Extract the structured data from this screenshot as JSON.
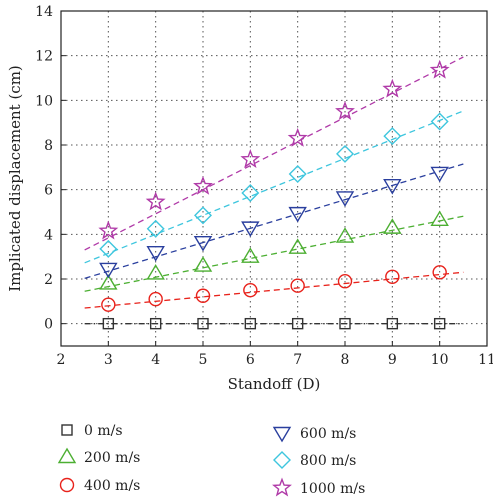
{
  "chart_data": {
    "type": "scatter",
    "xlabel": "Standoff (D)",
    "ylabel": "Implicated displacement (cm)",
    "xlim": [
      2,
      11
    ],
    "ylim": [
      -1,
      14
    ],
    "x_ticks": [
      2,
      3,
      4,
      5,
      6,
      7,
      8,
      9,
      10,
      11
    ],
    "y_ticks": [
      0,
      2,
      4,
      6,
      8,
      10,
      12,
      14
    ],
    "grid": true,
    "legend_position": "bottom",
    "x": [
      3,
      4,
      5,
      6,
      7,
      8,
      9,
      10
    ],
    "series": [
      {
        "name": "0 m/s",
        "marker": "square",
        "color": "#333333",
        "values": [
          0,
          0,
          0,
          0,
          0,
          0,
          0,
          0
        ],
        "fit": [
          0,
          0
        ]
      },
      {
        "name": "200 m/s",
        "marker": "triangle-up",
        "color": "#4caf32",
        "values": [
          1.8,
          2.25,
          2.6,
          3.0,
          3.4,
          3.9,
          4.3,
          4.65
        ],
        "fit": [
          0.4,
          0.42
        ]
      },
      {
        "name": "400 m/s",
        "marker": "circle",
        "color": "#e8221b",
        "values": [
          0.85,
          1.1,
          1.25,
          1.5,
          1.7,
          1.9,
          2.1,
          2.3
        ],
        "fit": [
          0.2,
          0.2
        ]
      },
      {
        "name": "600 m/s",
        "marker": "triangle-down",
        "color": "#2a3f9e",
        "values": [
          2.45,
          3.2,
          3.65,
          4.3,
          4.95,
          5.65,
          6.2,
          6.75
        ],
        "fit": [
          0.43,
          0.64
        ]
      },
      {
        "name": "800 m/s",
        "marker": "diamond",
        "color": "#3ec6de",
        "values": [
          3.35,
          4.25,
          4.85,
          5.85,
          6.7,
          7.6,
          8.4,
          9.05
        ],
        "fit": [
          0.6,
          0.85
        ]
      },
      {
        "name": "1000 m/s",
        "marker": "star",
        "color": "#b03aa8",
        "values": [
          4.15,
          5.45,
          6.15,
          7.35,
          8.3,
          9.5,
          10.5,
          11.35
        ],
        "fit": [
          0.6,
          1.08
        ]
      }
    ]
  }
}
